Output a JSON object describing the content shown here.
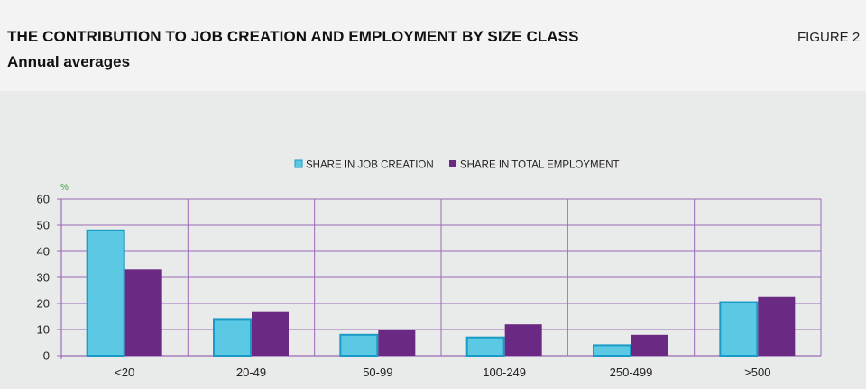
{
  "header": {
    "title": "THE CONTRIBUTION TO JOB CREATION AND EMPLOYMENT BY SIZE CLASS",
    "subtitle": "Annual averages",
    "figure_label": "FIGURE 2"
  },
  "colors": {
    "job_creation": "#5bc8e4",
    "job_creation_border": "#1a9ac6",
    "total_employment": "#6a2a84",
    "grid": "#9b6bb8",
    "unit": "#4a9a4a"
  },
  "chart_data": {
    "type": "bar",
    "title": "",
    "xlabel": "",
    "ylabel": "%",
    "ylim": [
      0,
      60
    ],
    "yticks": [
      0,
      10,
      20,
      30,
      40,
      50,
      60
    ],
    "categories": [
      "<20",
      "20-49",
      "50-99",
      "100-249",
      "250-499",
      ">500"
    ],
    "series": [
      {
        "name": "SHARE IN JOB CREATION",
        "values": [
          48,
          14,
          8,
          7,
          4,
          20.5
        ]
      },
      {
        "name": "SHARE IN TOTAL EMPLOYMENT",
        "values": [
          33,
          17,
          10,
          12,
          8,
          22.5
        ]
      }
    ],
    "legend_position": "top-center",
    "grid": true
  }
}
